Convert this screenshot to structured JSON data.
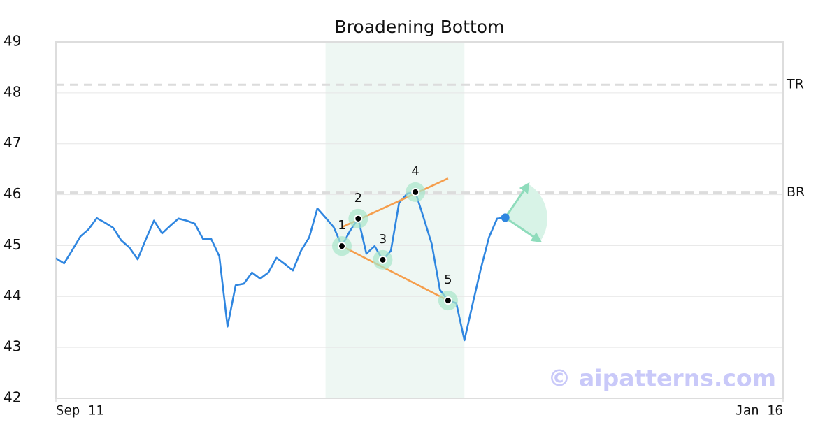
{
  "chart_data": {
    "type": "line",
    "title": "Broadening Bottom",
    "xlim": [
      0,
      89
    ],
    "xticks": [
      {
        "value": 0,
        "label": "Sep 11"
      },
      {
        "value": 89,
        "label": "Jan 16"
      }
    ],
    "ylim": [
      42,
      49
    ],
    "yticks": [
      42,
      43,
      44,
      45,
      46,
      47,
      48,
      49
    ],
    "grid": true,
    "series": [
      {
        "color": "#2f86e0",
        "x": [
          0,
          1,
          2,
          3,
          4,
          5,
          6,
          7,
          8,
          9,
          10,
          11,
          12,
          13,
          14,
          15,
          16,
          17,
          18,
          19,
          20,
          21,
          22,
          23,
          24,
          25,
          26,
          27,
          28,
          29,
          30,
          31,
          32,
          33,
          34,
          35,
          36,
          37,
          38,
          39,
          40,
          41,
          42,
          43,
          44,
          45,
          46,
          47,
          48,
          49,
          50,
          51,
          52,
          53,
          54,
          55
        ],
        "values": [
          44.75,
          44.65,
          44.91,
          45.18,
          45.32,
          45.54,
          45.45,
          45.35,
          45.1,
          44.96,
          44.73,
          45.12,
          45.49,
          45.24,
          45.39,
          45.53,
          45.49,
          45.43,
          45.13,
          45.13,
          44.79,
          43.41,
          44.22,
          44.25,
          44.47,
          44.35,
          44.47,
          44.76,
          44.64,
          44.51,
          44.9,
          45.16,
          45.73,
          45.55,
          45.36,
          44.99,
          45.29,
          45.53,
          44.84,
          44.99,
          44.72,
          44.9,
          45.84,
          46.02,
          46.05,
          45.55,
          45.03,
          44.13,
          43.92,
          43.87,
          43.14,
          43.85,
          44.54,
          45.16,
          45.53,
          45.55
        ]
      }
    ],
    "highlight_range": [
      33,
      50
    ],
    "levels": [
      {
        "label": "TR",
        "value": 48.16
      },
      {
        "label": "BR",
        "value": 46.04
      }
    ],
    "trend_lines": [
      {
        "color": "#f59e4c",
        "x": [
          35,
          48
        ],
        "y": [
          45.36,
          46.32
        ]
      },
      {
        "color": "#f59e4c",
        "x": [
          35,
          48
        ],
        "y": [
          44.99,
          43.92
        ]
      }
    ],
    "pattern_points": [
      {
        "label": "1",
        "x": 35,
        "y": 44.99
      },
      {
        "label": "2",
        "x": 37,
        "y": 45.53
      },
      {
        "label": "3",
        "x": 40,
        "y": 44.72
      },
      {
        "label": "4",
        "x": 44,
        "y": 46.05
      },
      {
        "label": "5",
        "x": 48,
        "y": 43.92
      }
    ],
    "watermark": "© aipatterns.com"
  }
}
